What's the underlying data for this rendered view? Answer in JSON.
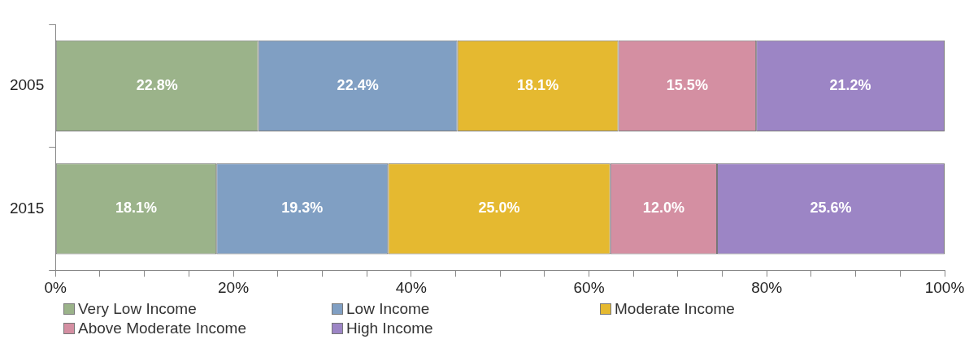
{
  "chart_data": {
    "type": "bar",
    "orientation": "horizontal",
    "stacked": true,
    "categories": [
      "2005",
      "2015"
    ],
    "series": [
      {
        "name": "Very Low Income",
        "color": "#9bb38a",
        "values": [
          22.8,
          18.1
        ],
        "value_labels": [
          "22.8%",
          "18.1%"
        ]
      },
      {
        "name": "Low Income",
        "color": "#809fc3",
        "values": [
          22.4,
          19.3
        ],
        "value_labels": [
          "22.4%",
          "19.3%"
        ]
      },
      {
        "name": "Moderate Income",
        "color": "#e5b930",
        "values": [
          18.1,
          25.0
        ],
        "value_labels": [
          "18.1%",
          "25.0%"
        ]
      },
      {
        "name": "Above Moderate Income",
        "color": "#d48fa2",
        "values": [
          15.5,
          12.0
        ],
        "value_labels": [
          "15.5%",
          "12.0%"
        ]
      },
      {
        "name": "High Income",
        "color": "#9c85c5",
        "values": [
          21.2,
          25.6
        ],
        "value_labels": [
          "21.2%",
          "25.6%"
        ]
      }
    ],
    "xlim": [
      0,
      100
    ],
    "xticks": [
      {
        "value": 0,
        "label": "0%"
      },
      {
        "value": 5,
        "label": null
      },
      {
        "value": 10,
        "label": null
      },
      {
        "value": 15,
        "label": null
      },
      {
        "value": 20,
        "label": "20%"
      },
      {
        "value": 25,
        "label": null
      },
      {
        "value": 30,
        "label": null
      },
      {
        "value": 35,
        "label": null
      },
      {
        "value": 40,
        "label": "40%"
      },
      {
        "value": 45,
        "label": null
      },
      {
        "value": 50,
        "label": null
      },
      {
        "value": 55,
        "label": null
      },
      {
        "value": 60,
        "label": "60%"
      },
      {
        "value": 65,
        "label": null
      },
      {
        "value": 70,
        "label": null
      },
      {
        "value": 75,
        "label": null
      },
      {
        "value": 80,
        "label": "80%"
      },
      {
        "value": 85,
        "label": null
      },
      {
        "value": 90,
        "label": null
      },
      {
        "value": 95,
        "label": null
      },
      {
        "value": 100,
        "label": "100%"
      }
    ],
    "grid": false,
    "legend": "bottom left"
  }
}
